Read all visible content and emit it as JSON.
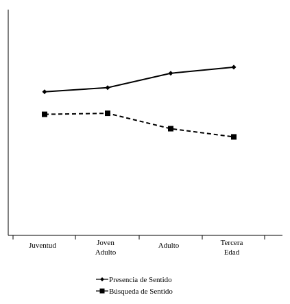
{
  "chart_data": {
    "type": "line",
    "categories": [
      [
        "Juventud"
      ],
      [
        "Joven",
        "Adulto"
      ],
      [
        "Adulto"
      ],
      [
        "Tercera",
        "Edad"
      ]
    ],
    "ylim": [
      0,
      10
    ],
    "series": [
      {
        "name": "Presencia de Sentido",
        "values": [
          7.0,
          7.2,
          7.9,
          8.2
        ],
        "line_style": "solid",
        "marker": "diamond",
        "color": "#000000"
      },
      {
        "name": "Búsqueda de Sentido",
        "values": [
          5.9,
          5.95,
          5.2,
          4.8
        ],
        "line_style": "dashed",
        "marker": "square",
        "color": "#000000"
      }
    ],
    "title": "",
    "xlabel": "",
    "ylabel": "",
    "grid": false,
    "legend_position": "bottom"
  }
}
